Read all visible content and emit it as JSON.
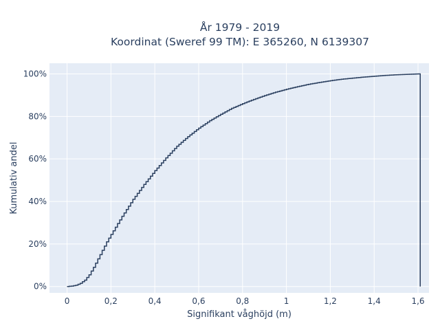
{
  "chart_data": {
    "type": "line",
    "subtype": "cumulative-step",
    "title_line1": "År 1979 - 2019",
    "title_line2": "Koordinat (Sweref 99 TM): E 365260, N 6139307",
    "xlabel": "Signifikant våghöjd (m)",
    "ylabel": "Kumulativ andel",
    "xlim": [
      -0.08,
      1.65
    ],
    "ylim": [
      -0.03,
      1.05
    ],
    "xticks": [
      0,
      0.2,
      0.4,
      0.6,
      0.8,
      1,
      1.2,
      1.4,
      1.6
    ],
    "xtick_labels": [
      "0",
      "0,2",
      "0,4",
      "0,6",
      "0,8",
      "1",
      "1,2",
      "1,4",
      "1,6"
    ],
    "yticks": [
      0,
      0.2,
      0.4,
      0.6,
      0.8,
      1
    ],
    "ytick_labels": [
      "0%",
      "20%",
      "40%",
      "60%",
      "80%",
      "100%"
    ],
    "grid": true,
    "legend": "none",
    "colors": {
      "line": "#2a3f5f",
      "plot_bg": "#e5ecf6",
      "grid": "#ffffff",
      "text": "#2a3f5f"
    },
    "x": [
      0,
      0.02,
      0.04,
      0.06,
      0.08,
      0.1,
      0.12,
      0.14,
      0.16,
      0.18,
      0.2,
      0.25,
      0.3,
      0.35,
      0.4,
      0.45,
      0.5,
      0.55,
      0.6,
      0.65,
      0.7,
      0.75,
      0.8,
      0.85,
      0.9,
      0.95,
      1.0,
      1.05,
      1.1,
      1.15,
      1.2,
      1.25,
      1.3,
      1.35,
      1.4,
      1.45,
      1.5,
      1.55,
      1.6,
      1.61
    ],
    "y": [
      0,
      0.002,
      0.006,
      0.015,
      0.03,
      0.055,
      0.09,
      0.13,
      0.17,
      0.21,
      0.245,
      0.33,
      0.41,
      0.48,
      0.545,
      0.605,
      0.66,
      0.705,
      0.745,
      0.78,
      0.81,
      0.838,
      0.86,
      0.88,
      0.898,
      0.914,
      0.928,
      0.94,
      0.951,
      0.96,
      0.968,
      0.975,
      0.98,
      0.985,
      0.989,
      0.993,
      0.996,
      0.998,
      1.0,
      1.0
    ],
    "drop_to_zero_at_x": 1.61
  }
}
